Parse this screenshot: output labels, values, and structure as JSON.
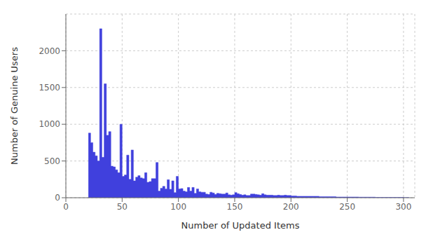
{
  "chart_data": {
    "type": "histogram",
    "xlabel": "Number of Updated Items",
    "ylabel": "Number of Genuine Users",
    "color": "#4040dd",
    "xlim": [
      0,
      310
    ],
    "ylim": [
      0,
      2500
    ],
    "xticks": [
      0,
      50,
      100,
      150,
      200,
      250,
      300
    ],
    "yticks": [
      0,
      500,
      1000,
      1500,
      2000
    ],
    "grid": true,
    "bins": [
      20,
      22,
      24,
      26,
      28,
      30,
      32,
      34,
      36,
      38,
      40,
      42,
      44,
      46,
      48,
      50,
      52,
      54,
      56,
      58,
      60,
      62,
      64,
      66,
      68,
      70,
      72,
      74,
      76,
      78,
      80,
      82,
      84,
      86,
      88,
      90,
      92,
      94,
      96,
      98,
      100,
      102,
      104,
      106,
      108,
      110,
      112,
      114,
      116,
      118,
      120,
      122,
      124,
      126,
      128,
      130,
      132,
      134,
      136,
      138,
      140,
      142,
      144,
      146,
      148,
      150,
      152,
      154,
      156,
      158,
      160,
      162,
      164,
      166,
      168,
      170,
      172,
      174,
      176,
      178,
      180,
      182,
      184,
      186,
      188,
      190,
      192,
      194,
      196,
      198,
      200,
      205,
      210,
      215,
      220,
      225,
      230,
      235,
      240,
      245,
      250,
      255,
      260,
      265,
      270,
      275,
      280,
      285,
      290,
      295,
      300,
      305
    ],
    "values": [
      880,
      750,
      620,
      570,
      500,
      2300,
      550,
      1550,
      850,
      900,
      430,
      420,
      380,
      340,
      1000,
      290,
      310,
      580,
      250,
      650,
      230,
      280,
      300,
      270,
      260,
      340,
      210,
      220,
      260,
      260,
      480,
      90,
      130,
      155,
      120,
      245,
      115,
      230,
      70,
      290,
      120,
      125,
      90,
      80,
      140,
      90,
      140,
      60,
      120,
      80,
      75,
      75,
      50,
      45,
      75,
      65,
      45,
      60,
      55,
      50,
      50,
      65,
      40,
      35,
      40,
      70,
      55,
      45,
      35,
      40,
      30,
      30,
      50,
      50,
      45,
      40,
      35,
      55,
      40,
      35,
      35,
      35,
      30,
      30,
      35,
      30,
      30,
      35,
      30,
      30,
      25,
      20,
      20,
      20,
      20,
      15,
      15,
      15,
      10,
      10,
      10,
      10,
      8,
      8,
      8,
      5,
      5,
      5,
      5,
      5,
      2
    ]
  }
}
